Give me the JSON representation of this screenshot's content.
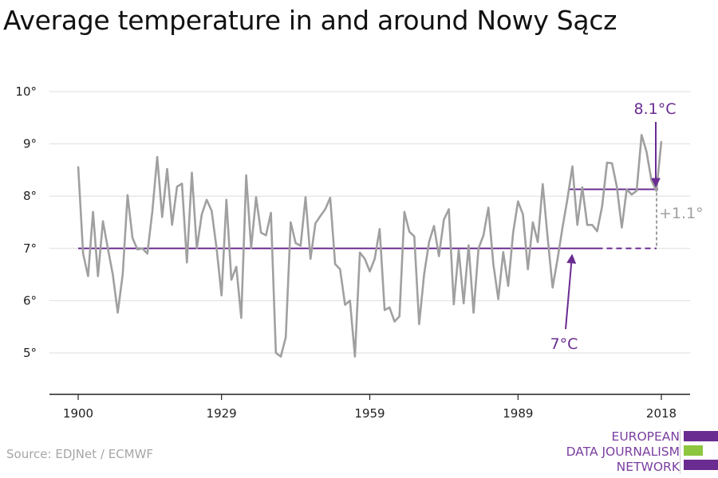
{
  "title": "Average temperature in and around Nowy Sącz",
  "source": "Source: EDJNet / ECMWF",
  "logo": {
    "lines": [
      "EUROPEAN",
      "DATA JOURNALISM",
      "NETWORK"
    ]
  },
  "colors": {
    "series": "#a0a0a0",
    "accent": "#6a2c91",
    "delta": "#a0a0a0",
    "grid": "#dddddd",
    "green": "#8dc63f"
  },
  "chart_data": {
    "type": "line",
    "title": "Average temperature in and around Nowy Sącz",
    "xlabel": "",
    "ylabel": "",
    "xlim": [
      1900,
      2018
    ],
    "ylim": [
      5,
      10
    ],
    "x_ticks": [
      1900,
      1929,
      1959,
      1989,
      2018
    ],
    "x_tick_labels": [
      "1900",
      "1929",
      "1959",
      "1989",
      "2018"
    ],
    "y_ticks": [
      5,
      6,
      7,
      8,
      9,
      10
    ],
    "y_tick_labels": [
      "5°",
      "6°",
      "7°",
      "8°",
      "9°",
      "10°"
    ],
    "grid": true,
    "series": [
      {
        "x": [
          1900,
          1901,
          1902,
          1903,
          1904,
          1905,
          1906,
          1907,
          1908,
          1909,
          1910,
          1911,
          1912,
          1913,
          1914,
          1915,
          1916,
          1917,
          1918,
          1919,
          1920,
          1921,
          1922,
          1923,
          1924,
          1925,
          1926,
          1927,
          1928,
          1929,
          1930,
          1931,
          1932,
          1933,
          1934,
          1935,
          1936,
          1937,
          1938,
          1939,
          1940,
          1941,
          1942,
          1943,
          1944,
          1945,
          1946,
          1947,
          1948,
          1949,
          1950,
          1951,
          1952,
          1953,
          1954,
          1955,
          1956,
          1957,
          1958,
          1959,
          1960,
          1961,
          1962,
          1963,
          1964,
          1965,
          1966,
          1967,
          1968,
          1969,
          1970,
          1971,
          1972,
          1973,
          1974,
          1975,
          1976,
          1977,
          1978,
          1979,
          1980,
          1981,
          1982,
          1983,
          1984,
          1985,
          1986,
          1987,
          1988,
          1989,
          1990,
          1991,
          1992,
          1993,
          1994,
          1995,
          1996,
          1997,
          1998,
          1999,
          2000,
          2001,
          2002,
          2003,
          2004,
          2005,
          2006,
          2007,
          2008,
          2009,
          2010,
          2011,
          2012,
          2013,
          2014,
          2015,
          2016,
          2017,
          2018
        ],
        "values": [
          8.57,
          6.9,
          6.47,
          7.7,
          6.47,
          7.52,
          7.0,
          6.5,
          5.77,
          6.5,
          8.02,
          7.2,
          6.98,
          7.0,
          6.9,
          7.7,
          8.75,
          7.6,
          8.52,
          7.45,
          8.18,
          8.24,
          6.73,
          8.45,
          7.0,
          7.65,
          7.93,
          7.72,
          7.0,
          6.1,
          7.93,
          6.4,
          6.65,
          5.67,
          8.4,
          7.0,
          7.98,
          7.3,
          7.25,
          7.68,
          5.0,
          4.93,
          5.3,
          7.5,
          7.1,
          7.05,
          7.98,
          6.8,
          7.48,
          7.62,
          7.75,
          7.97,
          6.7,
          6.6,
          5.92,
          6.0,
          4.93,
          6.92,
          6.8,
          6.56,
          6.8,
          7.37,
          5.82,
          5.87,
          5.6,
          5.7,
          7.7,
          7.32,
          7.23,
          5.55,
          6.5,
          7.12,
          7.43,
          6.85,
          7.55,
          7.75,
          5.93,
          6.97,
          5.95,
          7.06,
          5.77,
          7.0,
          7.25,
          7.78,
          6.7,
          6.03,
          6.93,
          6.28,
          7.3,
          7.9,
          7.65,
          6.6,
          7.5,
          7.12,
          8.23,
          7.2,
          6.25,
          6.8,
          7.4,
          7.95,
          8.57,
          7.45,
          8.17,
          7.45,
          7.45,
          7.33,
          7.8,
          8.64,
          8.63,
          8.18,
          7.4,
          8.13,
          8.03,
          8.1,
          9.17,
          8.85,
          8.3,
          8.1,
          9.05
        ]
      }
    ],
    "reference_lines": [
      {
        "label": "7°C",
        "value": 7.0,
        "x_range": [
          1900,
          2018
        ]
      },
      {
        "label": "8.1°C",
        "value": 8.13,
        "x_range": [
          2000,
          2018
        ]
      }
    ],
    "annotations": [
      {
        "text": "8.1°C"
      },
      {
        "text": "7°C"
      },
      {
        "text": "+1.1°"
      }
    ]
  }
}
